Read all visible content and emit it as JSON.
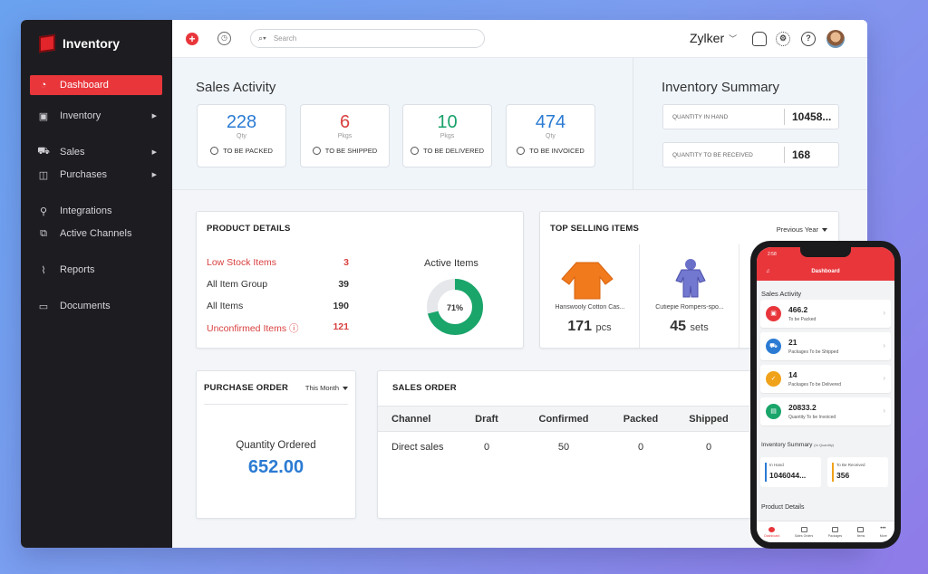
{
  "app": {
    "name": "Inventory"
  },
  "sidebar": {
    "items": [
      {
        "label": "Dashboard"
      },
      {
        "label": "Inventory"
      },
      {
        "label": "Sales"
      },
      {
        "label": "Purchases"
      },
      {
        "label": "Integrations"
      },
      {
        "label": "Active Channels"
      },
      {
        "label": "Reports"
      },
      {
        "label": "Documents"
      }
    ]
  },
  "topbar": {
    "search_placeholder": "Search",
    "org_name": "Zylker"
  },
  "sales_activity": {
    "title": "Sales Activity",
    "cards": [
      {
        "value": "228",
        "unit": "Qty",
        "label": "TO BE PACKED",
        "color": "#2b7bd3"
      },
      {
        "value": "6",
        "unit": "Pkgs",
        "label": "TO BE SHIPPED",
        "color": "#d8403f"
      },
      {
        "value": "10",
        "unit": "Pkgs",
        "label": "TO BE DELIVERED",
        "color": "#19a16a"
      },
      {
        "value": "474",
        "unit": "Qty",
        "label": "TO BE INVOICED",
        "color": "#2b7bd3"
      }
    ]
  },
  "inventory_summary": {
    "title": "Inventory Summary",
    "rows": [
      {
        "label": "QUANTITY IN HAND",
        "value": "10458..."
      },
      {
        "label": "QUANTITY TO BE RECEIVED",
        "value": "168"
      }
    ]
  },
  "product_details": {
    "title": "PRODUCT DETAILS",
    "rows": [
      {
        "label": "Low Stock Items",
        "value": "3"
      },
      {
        "label": "All Item Group",
        "value": "39"
      },
      {
        "label": "All Items",
        "value": "190"
      },
      {
        "label": "Unconfirmed Items",
        "value": "121"
      }
    ],
    "active_items": {
      "title": "Active Items",
      "percent_label": "71%",
      "fraction": 0.71,
      "color": "#1aa56a"
    }
  },
  "top_selling": {
    "title": "TOP SELLING ITEMS",
    "filter": "Previous Year",
    "items": [
      {
        "name": "Hanswooly Cotton Cas...",
        "qty": "171",
        "unit": "pcs"
      },
      {
        "name": "Cutiepie Rompers-spo...",
        "qty": "45",
        "unit": "sets"
      }
    ]
  },
  "purchase_order": {
    "title": "PURCHASE ORDER",
    "filter": "This Month",
    "label": "Quantity Ordered",
    "value": "652.00"
  },
  "sales_order": {
    "title": "SALES ORDER",
    "columns": [
      "Channel",
      "Draft",
      "Confirmed",
      "Packed",
      "Shipped"
    ],
    "rows": [
      [
        "Direct sales",
        "0",
        "50",
        "0",
        "0"
      ]
    ]
  },
  "mobile": {
    "time": "2:58",
    "title": "Dashboard",
    "sales_activity_title": "Sales Activity",
    "cards": [
      {
        "value": "466.2",
        "label": "To be Packed",
        "color": "#e8363b"
      },
      {
        "value": "21",
        "label": "Packages To be Shipped",
        "color": "#2b7bd3"
      },
      {
        "value": "14",
        "label": "Packages To be Delivered",
        "color": "#f0a21a"
      },
      {
        "value": "20833.2",
        "label": "Quantity To be Invoiced",
        "color": "#1aa56a"
      }
    ],
    "inventory_summary_title": "Inventory Summary",
    "inventory_summary_sub": "(In Quantity)",
    "in_hand_label": "In Hand",
    "in_hand_value": "1046044...",
    "to_receive_label": "To Be Received",
    "to_receive_value": "356",
    "product_details_title": "Product Details",
    "tabs": [
      "Dashboard",
      "Sales Orders",
      "Packages",
      "Items",
      "More"
    ]
  }
}
